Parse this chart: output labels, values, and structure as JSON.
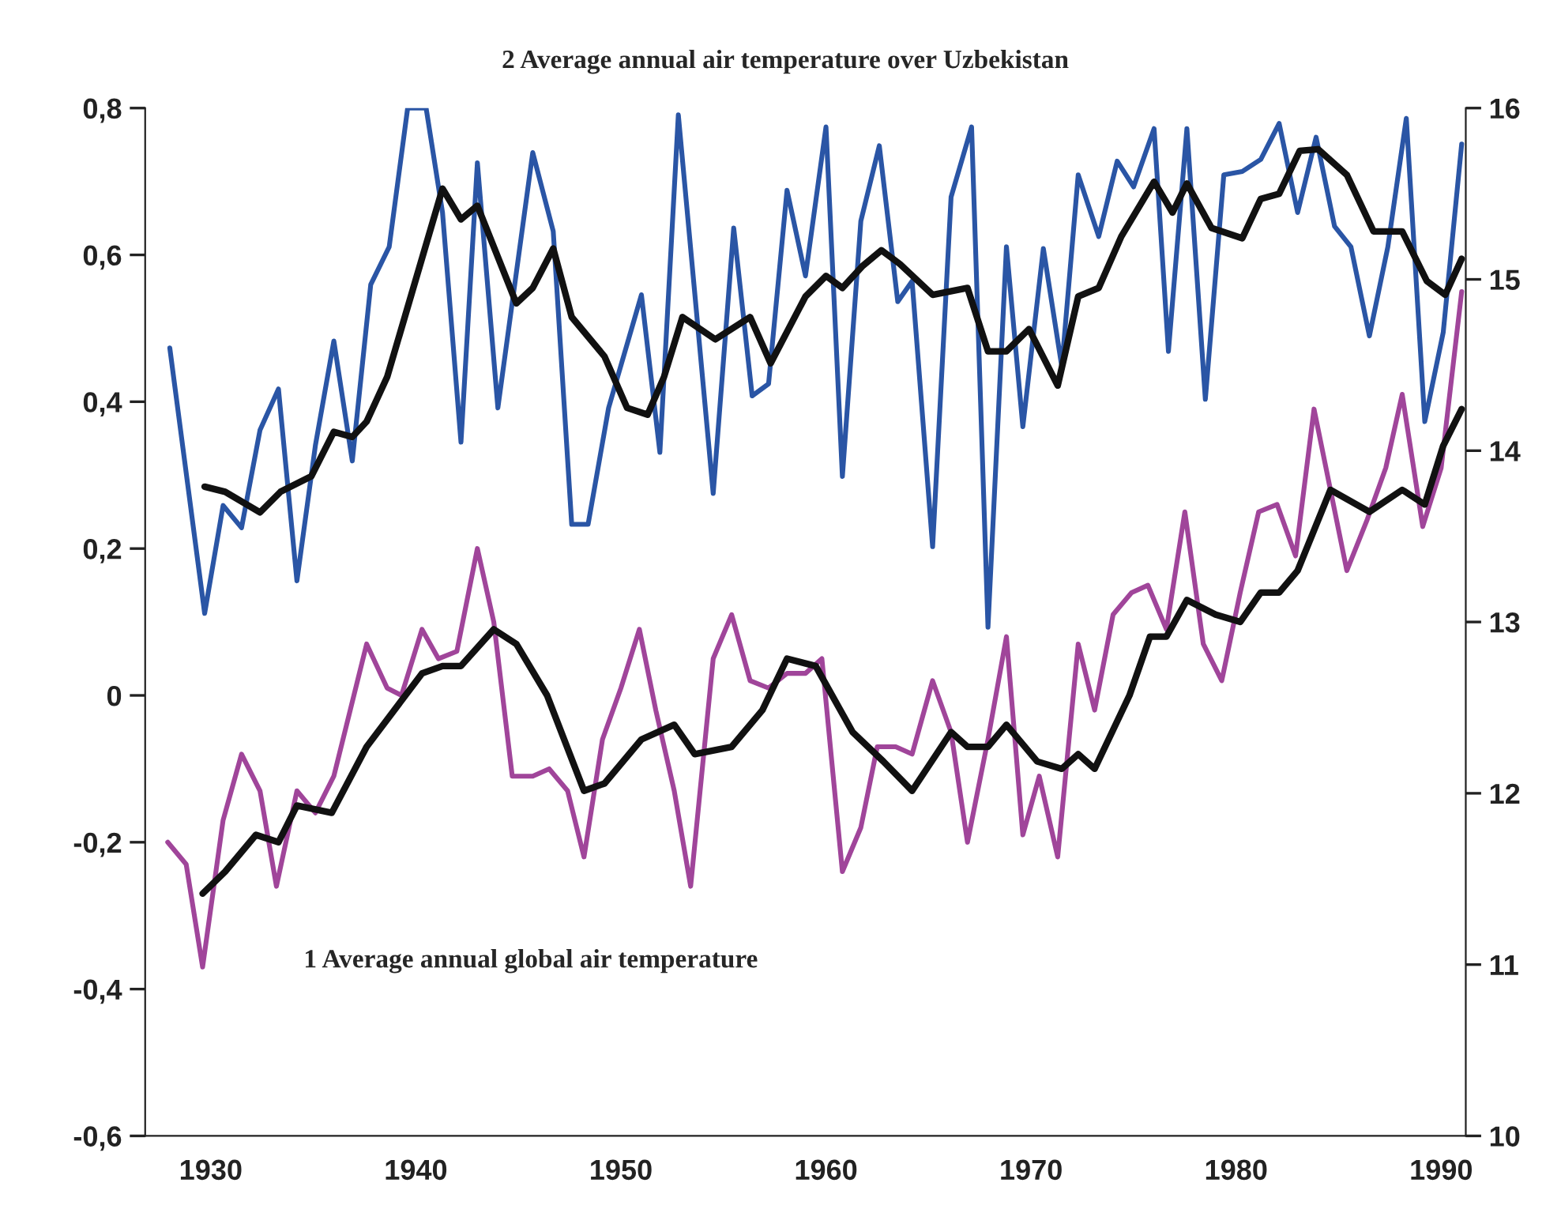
{
  "chart_data": {
    "type": "line",
    "annotations": [
      "2 Average annual air temperature over Uzbekistan",
      "1 Average annual global air temperature"
    ],
    "xlim": [
      1926.8,
      1991.2
    ],
    "xticks": [
      1930,
      1940,
      1950,
      1960,
      1970,
      1980,
      1990
    ],
    "ylim": [
      -0.6,
      0.8
    ],
    "yticks": [
      {
        "value": -0.6,
        "label": "-0,6"
      },
      {
        "value": -0.4,
        "label": "-0,4"
      },
      {
        "value": -0.2,
        "label": "-0,2"
      },
      0,
      {
        "value": 0.2,
        "label": "0,2"
      },
      {
        "value": 0.4,
        "label": "0,4"
      },
      {
        "value": 0.6,
        "label": "0,6"
      },
      {
        "value": 0.8,
        "label": "0,8"
      }
    ],
    "y2lim": [
      10,
      16
    ],
    "y2ticks": [
      10,
      11,
      12,
      13,
      14,
      15,
      16
    ],
    "grid": false,
    "marker": "none",
    "line_style": "solid",
    "series": [
      {
        "color": "#2a55a5",
        "axis": "y2",
        "x": [
          1928.0,
          1929.7,
          1930.6,
          1931.5,
          1932.4,
          1933.3,
          1934.2,
          1935.1,
          1936.0,
          1936.9,
          1937.8,
          1938.7,
          1939.6,
          1940.5,
          1941.3,
          1942.2,
          1943.0,
          1944.0,
          1945.7,
          1946.7,
          1947.6,
          1948.4,
          1949.4,
          1951.0,
          1951.9,
          1952.8,
          1954.5,
          1955.5,
          1956.4,
          1957.2,
          1958.1,
          1959.0,
          1960.0,
          1960.8,
          1961.7,
          1962.6,
          1963.5,
          1964.2,
          1965.2,
          1966.1,
          1967.1,
          1967.9,
          1968.8,
          1969.6,
          1970.6,
          1971.5,
          1972.3,
          1973.3,
          1974.2,
          1975.0,
          1976.0,
          1976.7,
          1977.6,
          1978.5,
          1979.4,
          1980.3,
          1981.2,
          1982.1,
          1983.0,
          1983.9,
          1984.8,
          1985.6,
          1986.5,
          1987.4,
          1988.3,
          1989.2,
          1990.1,
          1991.0
        ],
        "values": [
          14.6,
          13.05,
          13.68,
          13.55,
          14.12,
          14.36,
          13.24,
          14.03,
          14.64,
          13.94,
          14.97,
          15.19,
          16.0,
          16.0,
          15.39,
          14.05,
          15.68,
          14.25,
          15.74,
          15.28,
          13.57,
          13.57,
          14.25,
          14.91,
          13.99,
          15.96,
          13.75,
          15.3,
          14.32,
          14.39,
          15.52,
          15.02,
          15.89,
          13.85,
          15.34,
          15.78,
          14.87,
          14.99,
          13.44,
          15.48,
          15.89,
          12.97,
          15.19,
          14.14,
          15.18,
          14.49,
          15.61,
          15.25,
          15.69,
          15.54,
          15.88,
          14.58,
          15.88,
          14.3,
          15.61,
          15.63,
          15.7,
          15.91,
          15.39,
          15.83,
          15.31,
          15.19,
          14.67,
          15.19,
          15.94,
          14.17,
          14.69,
          15.79
        ]
      },
      {
        "color": "#111111",
        "axis": "y2",
        "x": [
          1929.7,
          1930.7,
          1932.4,
          1933.4,
          1934.9,
          1936.0,
          1936.9,
          1937.6,
          1938.6,
          1941.3,
          1942.2,
          1943.0,
          1944.9,
          1945.7,
          1946.7,
          1947.6,
          1949.2,
          1950.3,
          1951.3,
          1952.1,
          1953.0,
          1954.6,
          1956.3,
          1957.3,
          1959.0,
          1960.0,
          1960.8,
          1961.8,
          1962.7,
          1963.6,
          1965.2,
          1966.9,
          1967.9,
          1968.8,
          1969.9,
          1971.3,
          1972.3,
          1973.3,
          1974.4,
          1976.0,
          1976.9,
          1977.6,
          1978.8,
          1980.3,
          1981.2,
          1982.1,
          1983.1,
          1984.0,
          1985.4,
          1986.7,
          1988.1,
          1989.3,
          1990.2,
          1991.0
        ],
        "values": [
          13.79,
          13.76,
          13.64,
          13.76,
          13.85,
          14.11,
          14.08,
          14.17,
          14.43,
          15.53,
          15.35,
          15.43,
          14.86,
          14.95,
          15.18,
          14.78,
          14.55,
          14.25,
          14.21,
          14.43,
          14.78,
          14.65,
          14.78,
          14.51,
          14.9,
          15.02,
          14.95,
          15.08,
          15.17,
          15.09,
          14.91,
          14.95,
          14.58,
          14.58,
          14.71,
          14.38,
          14.9,
          14.95,
          15.25,
          15.57,
          15.39,
          15.56,
          15.3,
          15.24,
          15.47,
          15.5,
          15.75,
          15.76,
          15.61,
          15.28,
          15.28,
          14.99,
          14.91,
          15.12
        ]
      },
      {
        "color": "#a0459a",
        "x": [
          1927.9,
          1928.8,
          1929.6,
          1930.6,
          1931.5,
          1932.4,
          1933.2,
          1934.2,
          1935.1,
          1936.0,
          1937.6,
          1938.6,
          1939.3,
          1940.3,
          1941.1,
          1942.0,
          1943.0,
          1943.8,
          1944.7,
          1945.7,
          1946.5,
          1947.4,
          1948.2,
          1949.1,
          1950.0,
          1950.9,
          1951.7,
          1952.6,
          1953.4,
          1954.5,
          1955.4,
          1956.3,
          1957.2,
          1958.1,
          1959.0,
          1959.8,
          1960.8,
          1961.7,
          1962.5,
          1963.4,
          1964.2,
          1965.2,
          1966.1,
          1966.9,
          1967.9,
          1968.8,
          1969.6,
          1970.4,
          1971.3,
          1972.3,
          1973.1,
          1974.0,
          1974.9,
          1975.7,
          1976.6,
          1977.5,
          1978.4,
          1979.3,
          1980.2,
          1981.1,
          1982.0,
          1982.9,
          1983.8,
          1985.4,
          1986.4,
          1987.3,
          1988.1,
          1989.1,
          1990.0,
          1991.0
        ],
        "values": [
          -0.2,
          -0.23,
          -0.37,
          -0.17,
          -0.08,
          -0.13,
          -0.26,
          -0.13,
          -0.16,
          -0.11,
          0.07,
          0.01,
          0.0,
          0.09,
          0.05,
          0.06,
          0.2,
          0.1,
          -0.11,
          -0.11,
          -0.1,
          -0.13,
          -0.22,
          -0.06,
          0.01,
          0.09,
          -0.02,
          -0.13,
          -0.26,
          0.05,
          0.11,
          0.02,
          0.01,
          0.03,
          0.03,
          0.05,
          -0.24,
          -0.18,
          -0.07,
          -0.07,
          -0.08,
          0.02,
          -0.05,
          -0.2,
          -0.06,
          0.08,
          -0.19,
          -0.11,
          -0.22,
          0.07,
          -0.02,
          0.11,
          0.14,
          0.15,
          0.09,
          0.25,
          0.07,
          0.02,
          0.14,
          0.25,
          0.26,
          0.19,
          0.39,
          0.17,
          0.24,
          0.31,
          0.41,
          0.23,
          0.31,
          0.55
        ]
      },
      {
        "color": "#111111",
        "x": [
          1929.6,
          1930.7,
          1932.2,
          1933.3,
          1934.2,
          1935.9,
          1937.6,
          1940.3,
          1941.3,
          1942.2,
          1943.8,
          1944.9,
          1946.4,
          1948.2,
          1949.2,
          1951.0,
          1952.6,
          1953.6,
          1955.4,
          1956.9,
          1958.1,
          1959.5,
          1961.3,
          1962.8,
          1964.2,
          1966.1,
          1966.9,
          1967.9,
          1968.8,
          1970.3,
          1971.5,
          1972.3,
          1973.1,
          1974.8,
          1975.8,
          1976.6,
          1977.6,
          1979.0,
          1980.2,
          1981.2,
          1982.1,
          1983.0,
          1984.6,
          1986.5,
          1988.1,
          1989.2,
          1990.1,
          1991.0
        ],
        "values": [
          -0.27,
          -0.24,
          -0.19,
          -0.2,
          -0.15,
          -0.16,
          -0.07,
          0.03,
          0.04,
          0.04,
          0.09,
          0.07,
          0.0,
          -0.13,
          -0.12,
          -0.06,
          -0.04,
          -0.08,
          -0.07,
          -0.02,
          0.05,
          0.04,
          -0.05,
          -0.09,
          -0.13,
          -0.05,
          -0.07,
          -0.07,
          -0.04,
          -0.09,
          -0.1,
          -0.08,
          -0.1,
          0.0,
          0.08,
          0.08,
          0.13,
          0.11,
          0.1,
          0.14,
          0.14,
          0.17,
          0.28,
          0.25,
          0.28,
          0.26,
          0.34,
          0.39
        ]
      }
    ]
  }
}
